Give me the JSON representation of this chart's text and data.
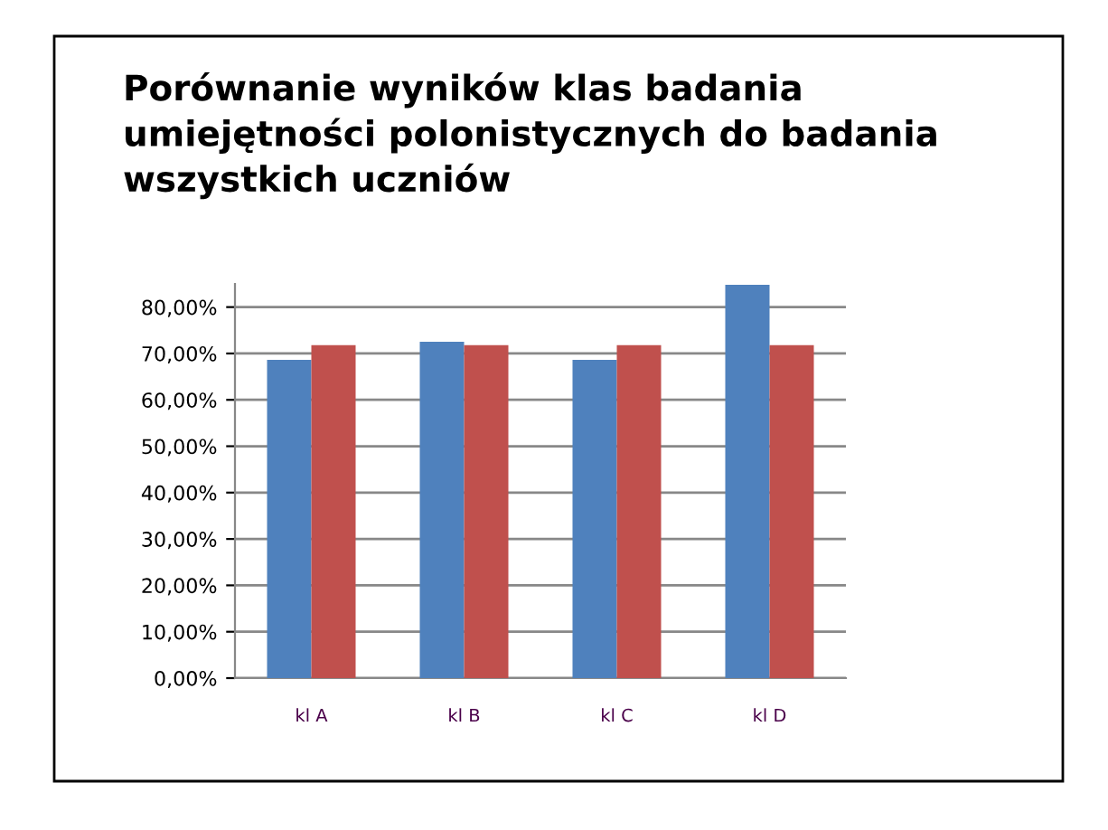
{
  "chart_data": {
    "type": "bar",
    "title": "Porównanie wyników klas badania\numiejętności polonistycznych do badania\nwszystkich uczniów",
    "categories": [
      "kl A",
      "kl B",
      "kl C",
      "kl D"
    ],
    "series": [
      {
        "color": "#4f81bd",
        "values": [
          68.6,
          72.5,
          68.6,
          84.8
        ]
      },
      {
        "color": "#c0504d",
        "values": [
          71.8,
          71.8,
          71.8,
          71.8
        ]
      }
    ],
    "ylim": [
      0,
      85
    ],
    "yticks": [
      {
        "value": 0,
        "label": "0,00%"
      },
      {
        "value": 10,
        "label": "10,00%"
      },
      {
        "value": 20,
        "label": "20,00%"
      },
      {
        "value": 30,
        "label": "30,00%"
      },
      {
        "value": 40,
        "label": "40,00%"
      },
      {
        "value": 50,
        "label": "50,00%"
      },
      {
        "value": 60,
        "label": "60,00%"
      },
      {
        "value": 70,
        "label": "70,00%"
      },
      {
        "value": 80,
        "label": "80,00%"
      }
    ],
    "grid": "y"
  }
}
